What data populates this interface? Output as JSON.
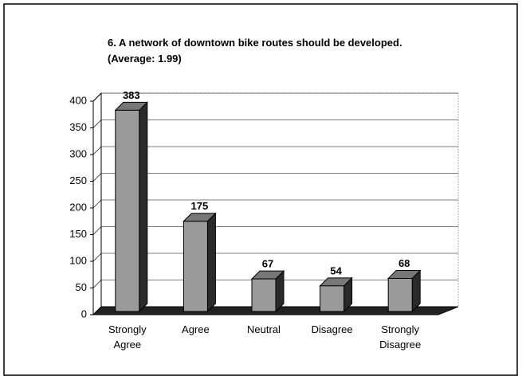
{
  "chart_data": {
    "type": "bar3d",
    "title": "6. A network of downtown bike routes should be developed. (Average: 1.99)",
    "categories": [
      "Strongly Agree",
      "Agree",
      "Neutral",
      "Disagree",
      "Strongly Disagree"
    ],
    "values": [
      383,
      175,
      67,
      54,
      68
    ],
    "color": "#9a9a9a",
    "ylim": [
      0,
      400
    ],
    "yticks": [
      0,
      50,
      100,
      150,
      200,
      250,
      300,
      350,
      400
    ],
    "grid": true
  }
}
